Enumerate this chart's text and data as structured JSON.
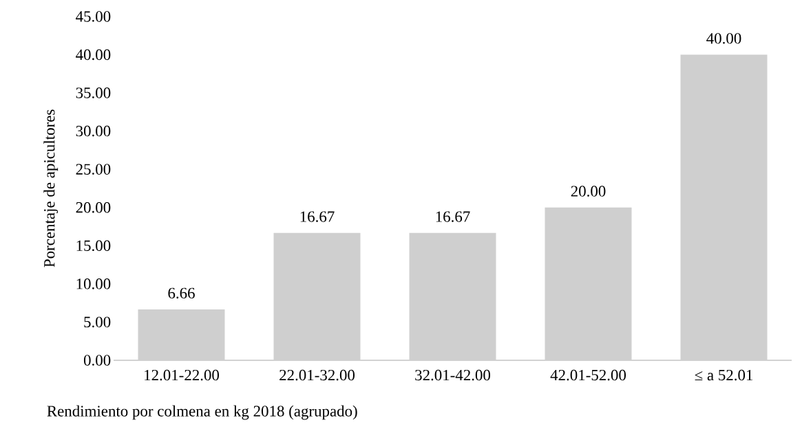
{
  "chart_data": {
    "type": "bar",
    "xlabel": "Rendimiento por colmena en kg 2018 (agrupado)",
    "ylabel": "Porcentaje de apicultores",
    "categories": [
      "12.01-22.00",
      "22.01-32.00",
      "32.01-42.00",
      "42.01-52.00",
      "≤ a 52.01"
    ],
    "values": [
      6.66,
      16.67,
      16.67,
      20,
      40
    ],
    "value_labels": [
      "6.66",
      "16.67",
      "16.67",
      "20.00",
      "40.00"
    ],
    "color": "#cfcfcf",
    "ylim": [
      0,
      45
    ],
    "yticks": [
      {
        "value": 0,
        "label": "0.00"
      },
      {
        "value": 5,
        "label": "5.00"
      },
      {
        "value": 10,
        "label": "10.00"
      },
      {
        "value": 15,
        "label": "15.00"
      },
      {
        "value": 20,
        "label": "20.00"
      },
      {
        "value": 25,
        "label": "25.00"
      },
      {
        "value": 30,
        "label": "30.00"
      },
      {
        "value": 35,
        "label": "35.00"
      },
      {
        "value": 40,
        "label": "40.00"
      },
      {
        "value": 45,
        "label": "45.00"
      }
    ],
    "grid": false
  }
}
